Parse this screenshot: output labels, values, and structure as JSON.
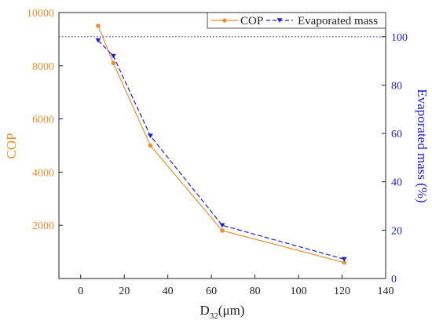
{
  "chart_data": {
    "type": "line",
    "title": "",
    "x": [
      8,
      15,
      32,
      65,
      121
    ],
    "xlabel": {
      "prefix": "D",
      "subscript": "32",
      "suffix": "(μm)"
    },
    "xlim": [
      -10,
      140
    ],
    "xticks": [
      0,
      20,
      40,
      60,
      80,
      100,
      120,
      140
    ],
    "y_left": {
      "label": "COP",
      "lim": [
        0,
        10000
      ],
      "ticks": [
        2000,
        4000,
        6000,
        8000,
        10000
      ],
      "color": "#e8912e"
    },
    "y_right": {
      "label": "Evaporated mass  (%)",
      "lim": [
        0,
        110
      ],
      "ticks": [
        0,
        20,
        40,
        60,
        80,
        100
      ],
      "color": "#1f1fd1"
    },
    "series": [
      {
        "name": "COP",
        "axis": "left",
        "values": [
          9500,
          8100,
          5000,
          1800,
          600
        ],
        "color": "#e8912e",
        "line": "solid",
        "marker": "circle"
      },
      {
        "name": "Evaporated mass",
        "axis": "right",
        "values": [
          98.5,
          92,
          59,
          22,
          8
        ],
        "color": "#1f1fd1",
        "line": "dashed",
        "marker": "triangle-down"
      }
    ],
    "reference_line": {
      "axis": "right",
      "value": 100,
      "style": "dotted",
      "color": "#1f1fd1"
    },
    "legend": "top-right",
    "grid": false
  }
}
